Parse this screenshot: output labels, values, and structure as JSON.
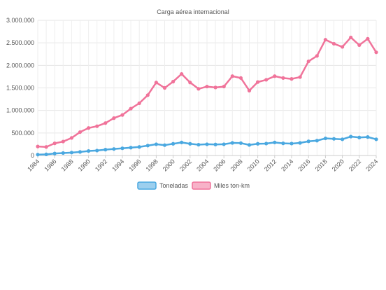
{
  "chart_data": {
    "type": "line",
    "title": "Carga aérea internacional",
    "xlabel": "",
    "ylabel": "",
    "ylim": [
      0,
      3000000
    ],
    "y_ticks": [
      "0",
      "500.000",
      "1.000.000",
      "1.500.000",
      "2.000.000",
      "2.500.000",
      "3.000.000"
    ],
    "x_ticks": [
      "1984",
      "1986",
      "1988",
      "1990",
      "1992",
      "1994",
      "1996",
      "1998",
      "2000",
      "2002",
      "2004",
      "2006",
      "2008",
      "2010",
      "2012",
      "2014",
      "2016",
      "2018",
      "2020",
      "2022",
      "2024"
    ],
    "grid": true,
    "legend_position": "bottom",
    "x": [
      1984,
      1985,
      1986,
      1987,
      1988,
      1989,
      1990,
      1991,
      1992,
      1993,
      1994,
      1995,
      1996,
      1997,
      1998,
      1999,
      2000,
      2001,
      2002,
      2003,
      2004,
      2005,
      2006,
      2007,
      2008,
      2009,
      2010,
      2011,
      2012,
      2013,
      2014,
      2015,
      2016,
      2017,
      2018,
      2019,
      2020,
      2021,
      2022,
      2023,
      2024
    ],
    "series": [
      {
        "name": "Toneladas",
        "color": "#4aa8e0",
        "values": [
          20000,
          25000,
          45000,
          55000,
          65000,
          80000,
          100000,
          110000,
          130000,
          145000,
          160000,
          175000,
          190000,
          220000,
          250000,
          230000,
          260000,
          290000,
          260000,
          240000,
          250000,
          245000,
          250000,
          280000,
          275000,
          235000,
          260000,
          265000,
          290000,
          270000,
          265000,
          280000,
          315000,
          330000,
          380000,
          370000,
          360000,
          420000,
          400000,
          410000,
          360000
        ]
      },
      {
        "name": "Miles ton-km",
        "color": "#f0739a",
        "values": [
          200000,
          190000,
          270000,
          310000,
          390000,
          520000,
          610000,
          650000,
          720000,
          830000,
          900000,
          1040000,
          1160000,
          1340000,
          1620000,
          1500000,
          1640000,
          1810000,
          1620000,
          1480000,
          1530000,
          1510000,
          1530000,
          1760000,
          1720000,
          1440000,
          1630000,
          1680000,
          1760000,
          1720000,
          1700000,
          1740000,
          2090000,
          2210000,
          2570000,
          2480000,
          2410000,
          2620000,
          2450000,
          2590000,
          2290000
        ]
      }
    ]
  }
}
